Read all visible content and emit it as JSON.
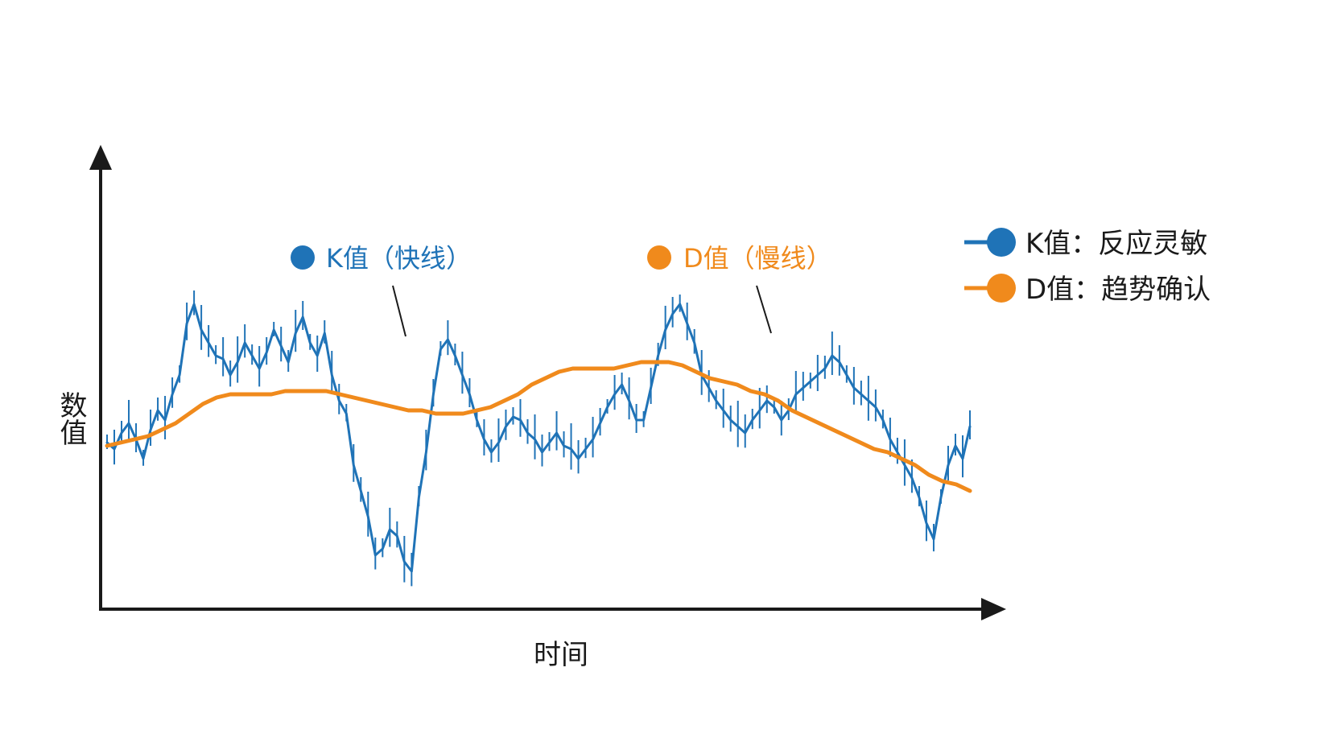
{
  "chart_data": {
    "type": "line",
    "title": "",
    "xlabel": "时间",
    "ylabel": "数值",
    "ylim": [
      0,
      100
    ],
    "grid": false,
    "legend_placement": "top-right",
    "legend": [
      {
        "label": "K值：反应灵敏"
      },
      {
        "label": "D值：趋势确认"
      }
    ],
    "annotations": [
      {
        "text": "K值（快线）",
        "target": "K"
      },
      {
        "text": "D值（慢线）",
        "target": "D"
      }
    ],
    "colors": {
      "K": "#1f73b7",
      "D": "#f08a1c",
      "axis": "#1a1a1a"
    },
    "series": [
      {
        "id": "K",
        "values": [
          45,
          43,
          48,
          51,
          46,
          40,
          49,
          55,
          52,
          60,
          66,
          82,
          88,
          80,
          76,
          72,
          71,
          66,
          70,
          76,
          72,
          68,
          73,
          80,
          75,
          70,
          79,
          84,
          76,
          72,
          79,
          66,
          58,
          54,
          38,
          30,
          22,
          10,
          12,
          18,
          16,
          8,
          5,
          28,
          42,
          60,
          74,
          77,
          72,
          66,
          60,
          52,
          46,
          42,
          45,
          50,
          53,
          52,
          48,
          46,
          42,
          45,
          48,
          44,
          43,
          40,
          43,
          46,
          51,
          56,
          60,
          63,
          58,
          52,
          52,
          62,
          72,
          80,
          85,
          88,
          82,
          76,
          66,
          62,
          58,
          55,
          52,
          50,
          48,
          52,
          55,
          58,
          56,
          52,
          55,
          60,
          62,
          64,
          66,
          68,
          72,
          70,
          66,
          62,
          60,
          58,
          56,
          52,
          46,
          42,
          38,
          34,
          28,
          20,
          15,
          28,
          38,
          44,
          40,
          50
        ]
      },
      {
        "id": "D",
        "values": [
          44,
          45,
          46,
          47,
          49,
          51,
          54,
          57,
          59,
          60,
          60,
          60,
          60,
          61,
          61,
          61,
          61,
          60,
          59,
          58,
          57,
          56,
          55,
          55,
          54,
          54,
          54,
          55,
          56,
          58,
          60,
          63,
          65,
          67,
          68,
          68,
          68,
          68,
          69,
          70,
          70,
          70,
          69,
          67,
          65,
          64,
          63,
          61,
          60,
          58,
          55,
          53,
          51,
          49,
          47,
          45,
          43,
          42,
          40,
          38,
          35,
          33,
          32,
          30
        ]
      }
    ]
  }
}
